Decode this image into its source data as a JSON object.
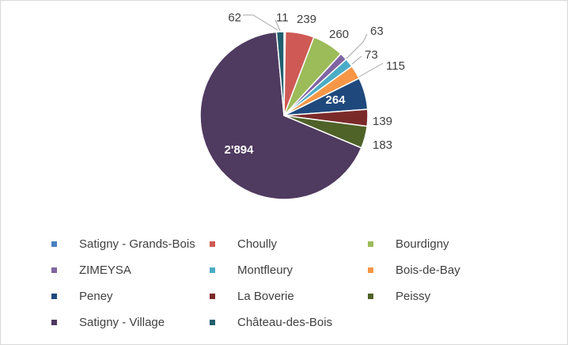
{
  "chart_data": {
    "type": "pie",
    "title": "",
    "categories": [
      "Satigny - Grands-Bois",
      "Choully",
      "Bourdigny",
      "ZIMEYSA",
      "Montfleury",
      "Bois-de-Bay",
      "Peney",
      "La Boverie",
      "Peissy",
      "Satigny - Village",
      "Château-des-Bois"
    ],
    "values": [
      11,
      239,
      260,
      63,
      73,
      115,
      264,
      139,
      183,
      2894,
      62
    ],
    "value_labels": [
      "11",
      "239",
      "260",
      "63",
      "73",
      "115",
      "264",
      "139",
      "183",
      "2'894",
      "62"
    ],
    "colors": [
      "#4a7fc1",
      "#cf5a55",
      "#9cbb59",
      "#8064a2",
      "#4bacc6",
      "#f79646",
      "#1f497d",
      "#7b2a2a",
      "#4f6228",
      "#4f3a60",
      "#215f6e"
    ],
    "start_angle_deg": 0,
    "direction": "clockwise",
    "legend_position": "bottom"
  }
}
